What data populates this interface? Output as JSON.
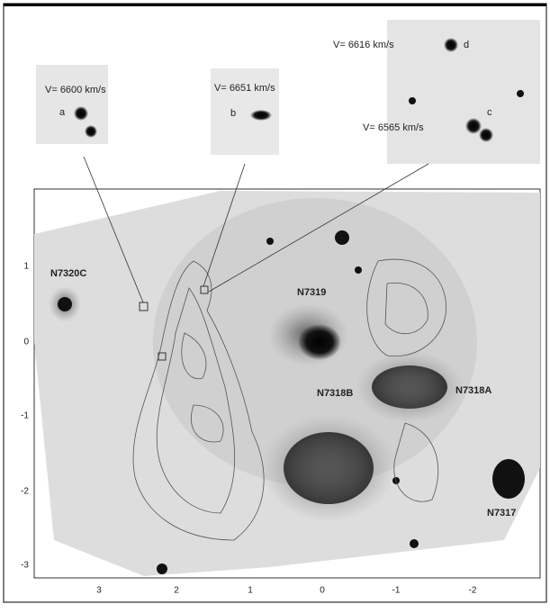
{
  "insets": [
    {
      "velocity": "V= 6600 km/s",
      "label": "a"
    },
    {
      "velocity": "V= 6651 km/s",
      "label": "b"
    },
    {
      "velocity": "V= 6616 km/s",
      "label": "d"
    },
    {
      "velocity": "V= 6565 km/s",
      "label": "c"
    }
  ],
  "galaxies": [
    "N7320C",
    "N7319",
    "N7318B",
    "N7318A",
    "N7317"
  ],
  "axes": {
    "x_ticks": [
      "3",
      "2",
      "1",
      "0",
      "-1",
      "-2"
    ],
    "y_ticks": [
      "1",
      "0",
      "-1",
      "-2",
      "-3"
    ]
  }
}
